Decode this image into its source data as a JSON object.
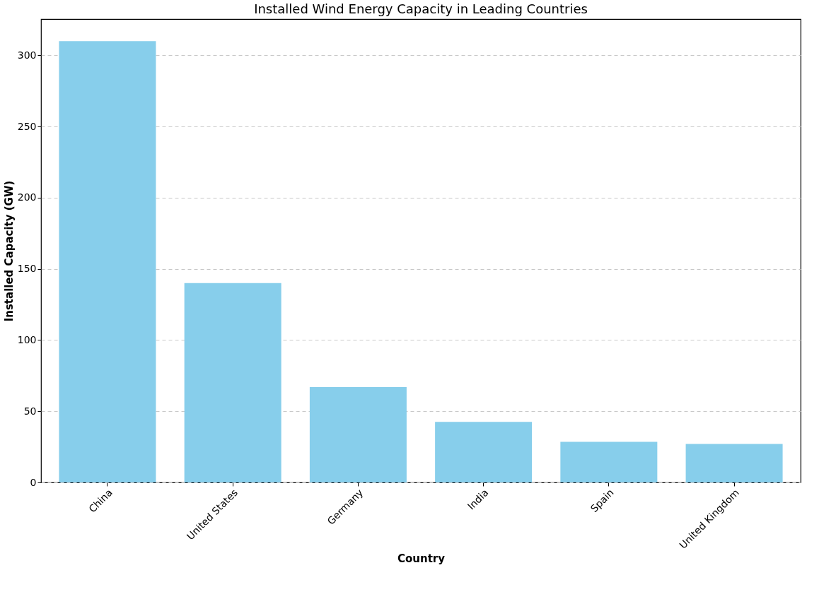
{
  "chart_data": {
    "type": "bar",
    "title": "Installed Wind Energy Capacity in Leading Countries",
    "xlabel": "Country",
    "ylabel": "Installed Capacity (GW)",
    "categories": [
      "China",
      "United States",
      "Germany",
      "India",
      "Spain",
      "United Kingdom"
    ],
    "values": [
      310,
      140,
      67,
      42.5,
      28.5,
      27
    ],
    "color": "#87ceeb",
    "ylim": [
      0,
      325.5
    ],
    "yticks": [
      0,
      50,
      100,
      150,
      200,
      250,
      300
    ],
    "grid": "y"
  }
}
